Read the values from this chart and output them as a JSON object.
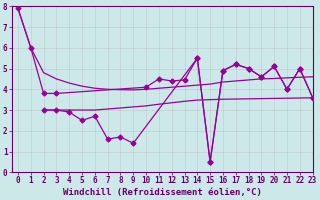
{
  "xlabel": "Windchill (Refroidissement éolien,°C)",
  "xlim": [
    -0.5,
    23
  ],
  "ylim": [
    0,
    8
  ],
  "bg_color": "#cce8e8",
  "line_color": "#990099",
  "grid_color": "#bbbbbb",
  "tick_color": "#660066",
  "spine_color": "#660066",
  "tick_fontsize": 5.5,
  "xlabel_fontsize": 6.5,
  "figsize": [
    3.2,
    2.0
  ],
  "dpi": 100,
  "smooth_line_x": [
    0,
    1,
    2,
    3,
    4,
    5,
    6,
    7,
    8,
    9,
    10,
    11,
    12,
    13,
    14,
    15,
    16,
    17,
    18,
    19,
    20,
    21,
    22,
    23
  ],
  "smooth_line_y": [
    7.9,
    6.0,
    4.8,
    4.5,
    4.3,
    4.15,
    4.05,
    4.0,
    3.98,
    3.97,
    4.0,
    4.05,
    4.1,
    4.15,
    4.2,
    4.25,
    4.35,
    4.4,
    4.45,
    4.5,
    4.52,
    4.55,
    4.58,
    4.6
  ],
  "flat_line_x": [
    2,
    3,
    4,
    5,
    6,
    7,
    8,
    9,
    10,
    11,
    12,
    13,
    14,
    15,
    16,
    17,
    18,
    19,
    20,
    21,
    22,
    23
  ],
  "flat_line_y": [
    3.0,
    3.0,
    3.0,
    3.0,
    3.0,
    3.05,
    3.1,
    3.15,
    3.2,
    3.28,
    3.35,
    3.42,
    3.48,
    3.5,
    3.52,
    3.53,
    3.54,
    3.55,
    3.56,
    3.57,
    3.58,
    3.59
  ],
  "upper_zigzag_x": [
    0,
    1,
    2,
    3,
    10,
    11,
    12,
    13,
    14,
    15,
    16,
    17,
    18,
    19,
    20,
    21,
    22,
    23
  ],
  "upper_zigzag_y": [
    7.9,
    6.0,
    3.8,
    3.8,
    4.1,
    4.5,
    4.4,
    4.45,
    5.5,
    0.5,
    4.9,
    5.2,
    5.0,
    4.6,
    5.1,
    4.0,
    5.0,
    3.6
  ],
  "lower_zigzag_x": [
    2,
    3,
    4,
    5,
    6,
    7,
    8,
    9,
    14,
    15,
    16,
    17,
    18,
    19,
    20,
    21,
    22,
    23
  ],
  "lower_zigzag_y": [
    3.0,
    3.0,
    2.9,
    2.5,
    2.7,
    1.6,
    1.7,
    1.4,
    5.5,
    0.5,
    4.9,
    5.2,
    5.0,
    4.6,
    5.1,
    4.0,
    5.0,
    3.6
  ]
}
